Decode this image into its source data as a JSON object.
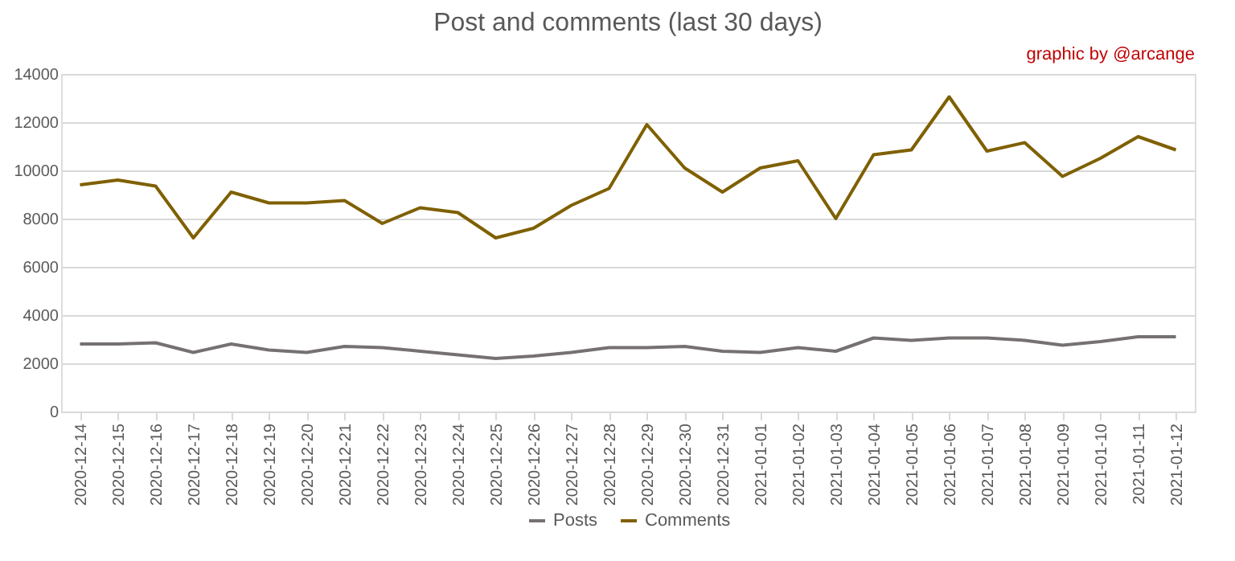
{
  "chart_data": {
    "type": "line",
    "title": "Post and comments (last 30 days)",
    "annotations": [
      "graphic by @arcange"
    ],
    "categories": [
      "2020-12-14",
      "2020-12-15",
      "2020-12-16",
      "2020-12-17",
      "2020-12-18",
      "2020-12-19",
      "2020-12-20",
      "2020-12-21",
      "2020-12-22",
      "2020-12-23",
      "2020-12-24",
      "2020-12-25",
      "2020-12-26",
      "2020-12-27",
      "2020-12-28",
      "2020-12-29",
      "2020-12-30",
      "2020-12-31",
      "2021-01-01",
      "2021-01-02",
      "2021-01-03",
      "2021-01-04",
      "2021-01-05",
      "2021-01-06",
      "2021-01-07",
      "2021-01-08",
      "2021-01-09",
      "2021-01-10",
      "2021-01-11",
      "2021-01-12"
    ],
    "series": [
      {
        "name": "Posts",
        "color": "#767171",
        "values": [
          2800,
          2800,
          2850,
          2450,
          2800,
          2550,
          2450,
          2700,
          2650,
          2500,
          2350,
          2200,
          2300,
          2450,
          2650,
          2650,
          2700,
          2500,
          2450,
          2650,
          2500,
          3050,
          2950,
          3050,
          3050,
          2950,
          2750,
          2900,
          3100,
          3100
        ]
      },
      {
        "name": "Comments",
        "color": "#7f6000",
        "values": [
          9400,
          9600,
          9350,
          7200,
          9100,
          8650,
          8650,
          8750,
          7800,
          8450,
          8250,
          7200,
          7600,
          8550,
          9250,
          11900,
          10100,
          9100,
          10100,
          10400,
          8000,
          10650,
          10850,
          13050,
          10800,
          11150,
          9750,
          10500,
          11400,
          10850
        ]
      }
    ],
    "ylim": [
      0,
      14000
    ],
    "yticks": [
      0,
      2000,
      4000,
      6000,
      8000,
      10000,
      12000,
      14000
    ],
    "grid": "y",
    "legend": "bottom",
    "marker": "none",
    "line_style": "solid"
  }
}
